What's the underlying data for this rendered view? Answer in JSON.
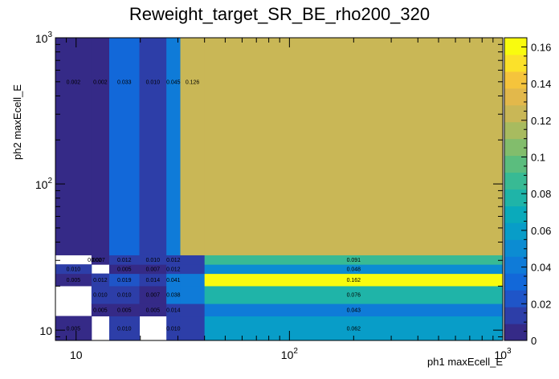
{
  "chart_data": {
    "type": "heatmap",
    "title": "Reweight_target_SR_BE_rho200_320",
    "xlabel": "ph1 maxEcell_E",
    "ylabel": "ph2 maxEcell_E",
    "xscale": "log",
    "yscale": "log",
    "xlim": [
      8,
      1000
    ],
    "ylim": [
      8.5,
      1000
    ],
    "x_tick_labels": [
      {
        "value": 10,
        "base": "10",
        "exp": ""
      },
      {
        "value": 100,
        "base": "10",
        "exp": "2"
      },
      {
        "value": 1000,
        "base": "10",
        "exp": "3"
      }
    ],
    "y_tick_labels": [
      {
        "value": 10,
        "base": "10",
        "exp": ""
      },
      {
        "value": 100,
        "base": "10",
        "exp": "2"
      },
      {
        "value": 1000,
        "base": "10",
        "exp": "3"
      }
    ],
    "x_bin_edges": [
      8,
      11.8,
      14.3,
      19.8,
      26.5,
      30.8,
      40,
      1000
    ],
    "y_bin_edges": [
      8.5,
      12.5,
      15.2,
      20.1,
      24.4,
      28.2,
      32.7,
      1000
    ],
    "cells": [
      {
        "ix": 0,
        "iy": 0,
        "value": 0.005,
        "label": "0.005"
      },
      {
        "ix": 1,
        "iy": 0,
        "value": 0.0,
        "label": ""
      },
      {
        "ix": 2,
        "iy": 0,
        "value": 0.01,
        "label": "0.010"
      },
      {
        "ix": 3,
        "iy": 0,
        "value": 0.0,
        "label": ""
      },
      {
        "ix": 4,
        "iy": 0,
        "value": 0.01,
        "label": "0.010"
      },
      {
        "ix": 5,
        "iy": 0,
        "value": 0.01,
        "label": ""
      },
      {
        "ix": 6,
        "iy": 0,
        "value": 0.062,
        "label": "0.062"
      },
      {
        "ix": 0,
        "iy": 1,
        "value": 0.0,
        "label": ""
      },
      {
        "ix": 1,
        "iy": 1,
        "value": 0.005,
        "label": "0.005"
      },
      {
        "ix": 2,
        "iy": 1,
        "value": 0.005,
        "label": "0.005"
      },
      {
        "ix": 3,
        "iy": 1,
        "value": 0.005,
        "label": "0.005"
      },
      {
        "ix": 4,
        "iy": 1,
        "value": 0.014,
        "label": "0.014"
      },
      {
        "ix": 5,
        "iy": 1,
        "value": 0.014,
        "label": ""
      },
      {
        "ix": 6,
        "iy": 1,
        "value": 0.043,
        "label": "0.043"
      },
      {
        "ix": 0,
        "iy": 2,
        "value": 0.0,
        "label": ""
      },
      {
        "ix": 1,
        "iy": 2,
        "value": 0.01,
        "label": "0.010"
      },
      {
        "ix": 2,
        "iy": 2,
        "value": 0.01,
        "label": "0.010"
      },
      {
        "ix": 3,
        "iy": 2,
        "value": 0.007,
        "label": "0.007"
      },
      {
        "ix": 4,
        "iy": 2,
        "value": 0.038,
        "label": "0.038"
      },
      {
        "ix": 5,
        "iy": 2,
        "value": 0.038,
        "label": ""
      },
      {
        "ix": 6,
        "iy": 2,
        "value": 0.076,
        "label": "0.076"
      },
      {
        "ix": 0,
        "iy": 3,
        "value": 0.005,
        "label": "0.005"
      },
      {
        "ix": 1,
        "iy": 3,
        "value": 0.012,
        "label": "0.012"
      },
      {
        "ix": 2,
        "iy": 3,
        "value": 0.019,
        "label": "0.019"
      },
      {
        "ix": 3,
        "iy": 3,
        "value": 0.014,
        "label": "0.014"
      },
      {
        "ix": 4,
        "iy": 3,
        "value": 0.041,
        "label": "0.041"
      },
      {
        "ix": 5,
        "iy": 3,
        "value": 0.041,
        "label": ""
      },
      {
        "ix": 6,
        "iy": 3,
        "value": 0.162,
        "label": "0.162"
      },
      {
        "ix": 0,
        "iy": 4,
        "value": 0.01,
        "label": "0.010"
      },
      {
        "ix": 1,
        "iy": 4,
        "value": 0.0,
        "label": ""
      },
      {
        "ix": 2,
        "iy": 4,
        "value": 0.005,
        "label": "0.005"
      },
      {
        "ix": 3,
        "iy": 4,
        "value": 0.007,
        "label": "0.007"
      },
      {
        "ix": 4,
        "iy": 4,
        "value": 0.012,
        "label": "0.012"
      },
      {
        "ix": 5,
        "iy": 4,
        "value": 0.012,
        "label": ""
      },
      {
        "ix": 6,
        "iy": 4,
        "value": 0.048,
        "label": "0.048"
      },
      {
        "ix": 0,
        "iy": 5,
        "value": 0.0,
        "label": ""
      },
      {
        "ix": 1,
        "iy": 5,
        "value": 0.002,
        "label": "0.002"
      },
      {
        "ix": 2,
        "iy": 5,
        "value": 0.012,
        "label": "0.012"
      },
      {
        "ix": 3,
        "iy": 5,
        "value": 0.01,
        "label": "0.010"
      },
      {
        "ix": 4,
        "iy": 5,
        "value": 0.012,
        "label": "0.012"
      },
      {
        "ix": 5,
        "iy": 5,
        "value": 0.012,
        "label": ""
      },
      {
        "ix": 6,
        "iy": 5,
        "value": 0.091,
        "label": "0.091"
      },
      {
        "ix": 0,
        "iy": 6,
        "value": 0.002,
        "label": "0.002"
      },
      {
        "ix": 1,
        "iy": 6,
        "value": 0.002,
        "label": "0.002"
      },
      {
        "ix": 2,
        "iy": 6,
        "value": 0.033,
        "label": "0.033"
      },
      {
        "ix": 3,
        "iy": 6,
        "value": 0.01,
        "label": "0.010"
      },
      {
        "ix": 4,
        "iy": 6,
        "value": 0.045,
        "label": "0.045"
      },
      {
        "ix": 5,
        "iy": 6,
        "value": 0.126,
        "label": "0.126"
      },
      {
        "ix": 6,
        "iy": 6,
        "value": 0.126,
        "label": ""
      },
      {
        "ix": 1,
        "iy": 5,
        "value": 0.007,
        "label": "0.007",
        "offset": "right"
      },
      {
        "ix": 1,
        "iy": 5,
        "value": 0.002,
        "label": "",
        "offset": "none"
      }
    ],
    "extra_labels": [],
    "colorbar": {
      "min": 0,
      "max": 0.165,
      "ticks": [
        0,
        0.02,
        0.04,
        0.06,
        0.08,
        0.1,
        0.12,
        0.14,
        0.16
      ],
      "tick_labels": [
        "0",
        "0.02",
        "0.04",
        "0.06",
        "0.08",
        "0.1",
        "0.12",
        "0.14",
        "0.16"
      ]
    },
    "colors": [
      "#352a87",
      "#2d3ea8",
      "#1f55c8",
      "#1268d9",
      "#0f7bd8",
      "#0c8cd2",
      "#089dc8",
      "#0aaabb",
      "#1fb4a8",
      "#38ba94",
      "#5bbd7e",
      "#82bd6c",
      "#a8bb5f",
      "#c9b756",
      "#e2b84b",
      "#f5c43c",
      "#fbe12a",
      "#f9fb0e"
    ]
  }
}
